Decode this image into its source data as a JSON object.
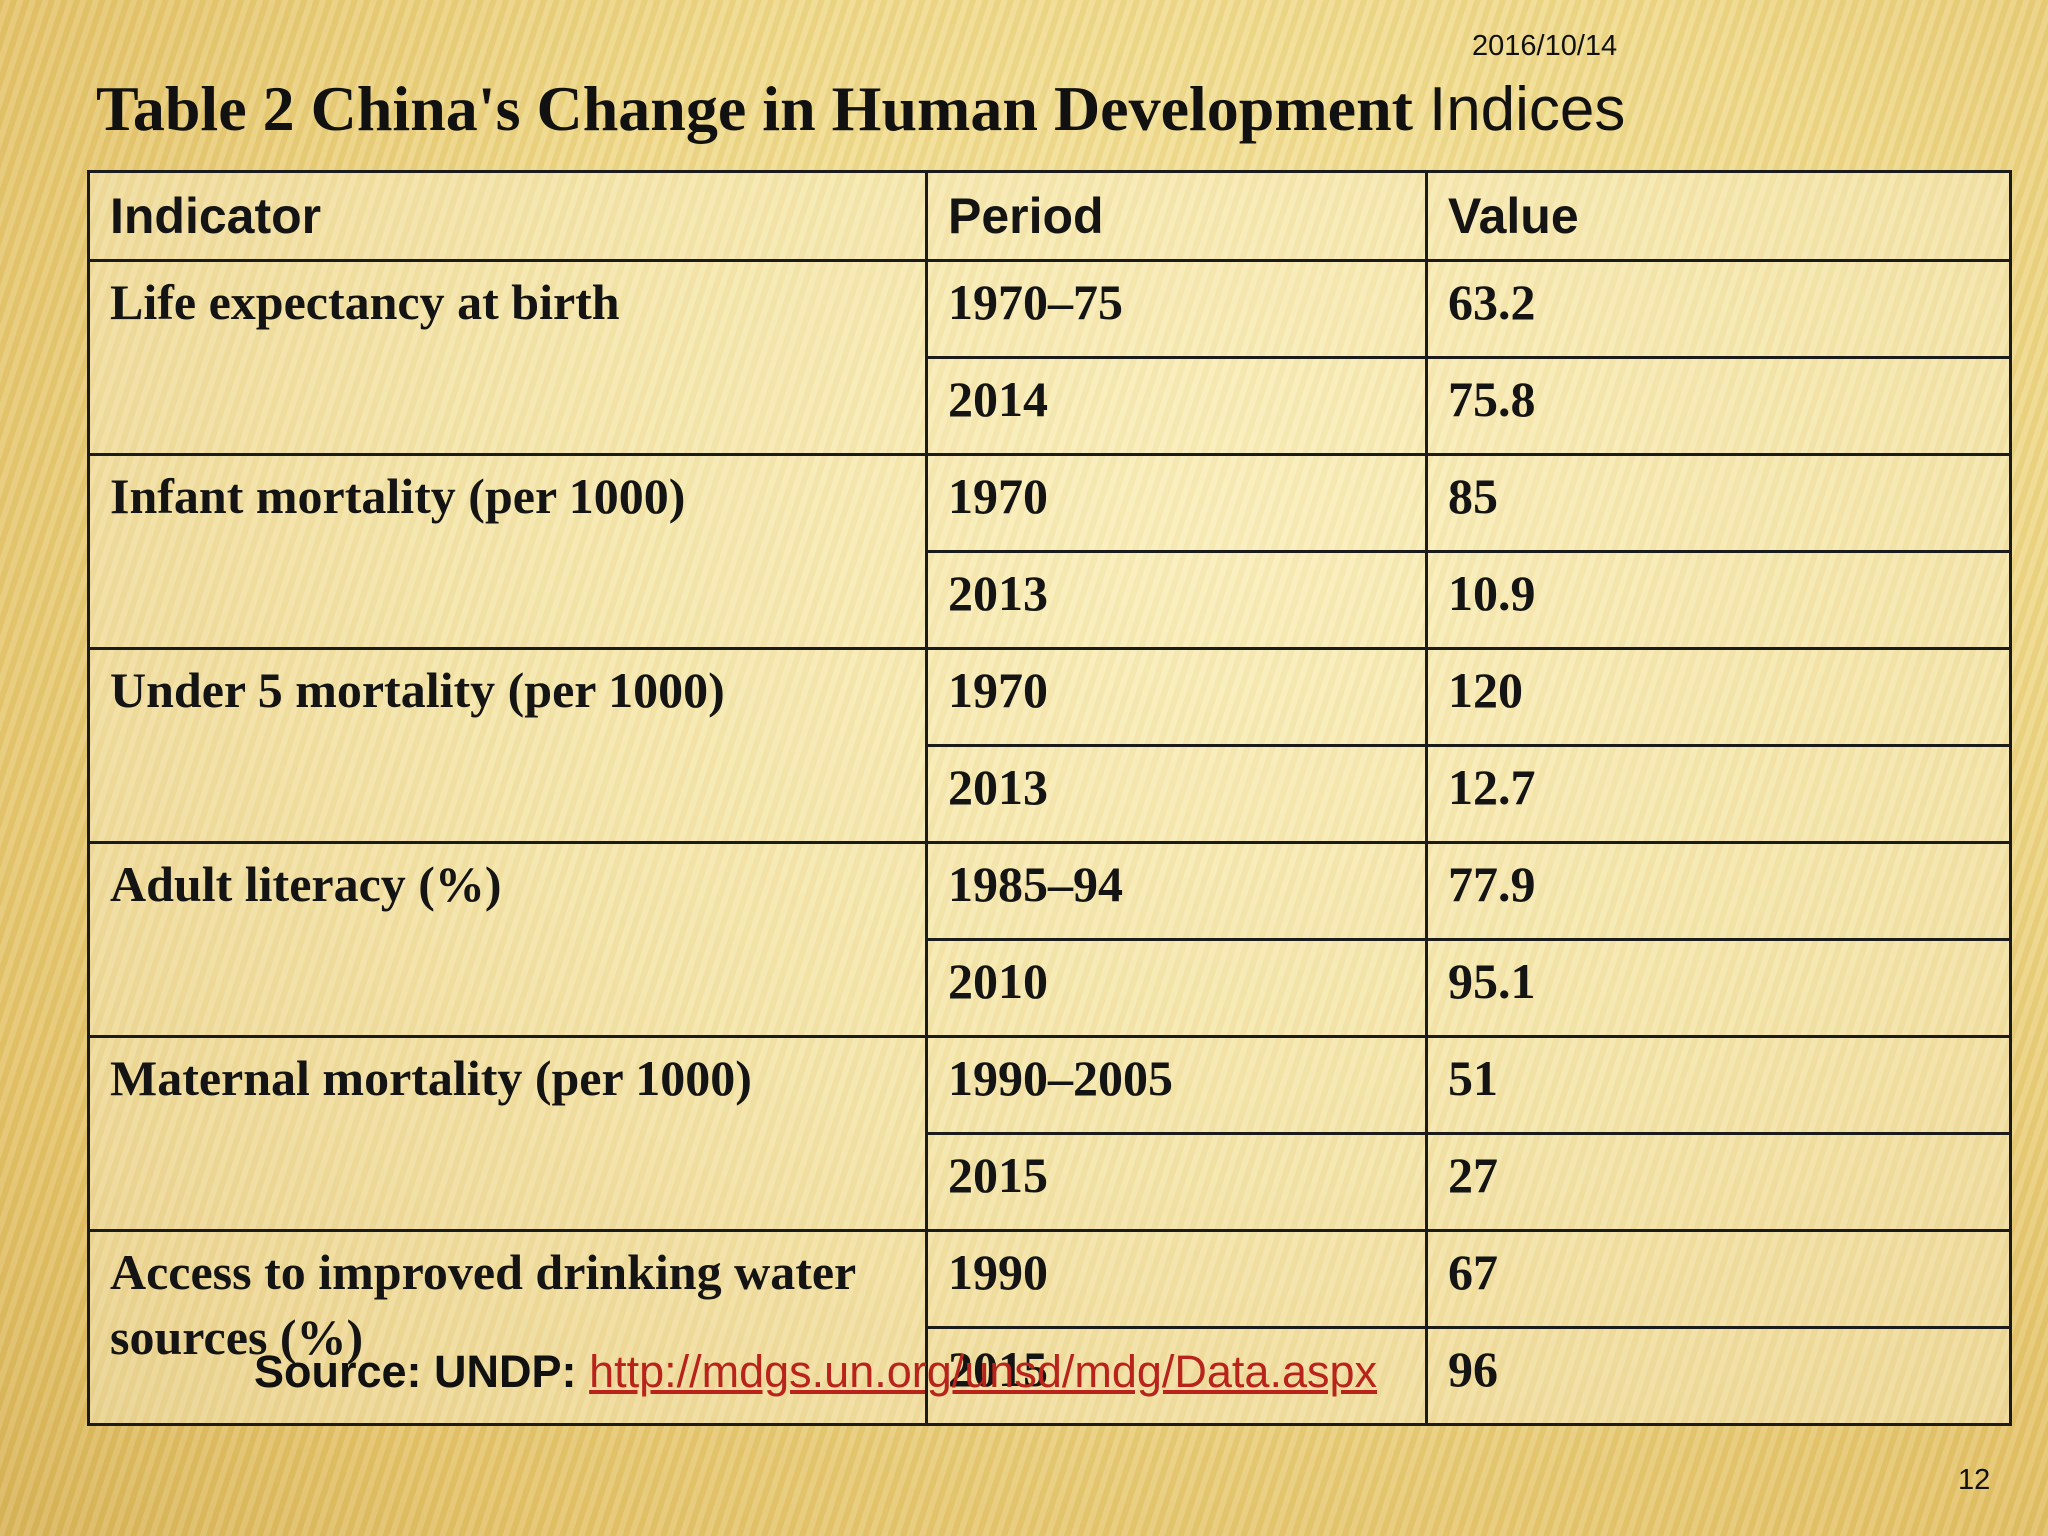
{
  "slide": {
    "date": "2016/10/14",
    "title_serif": "Table 2  China's Change in Human Development",
    "title_sans": "Indices",
    "page_number": "12"
  },
  "table": {
    "headers": [
      "Indicator",
      "Period",
      "Value"
    ],
    "groups": [
      {
        "indicator": "Life expectancy at birth",
        "rows": [
          {
            "period": "1970–75",
            "value": "63.2"
          },
          {
            "period": "2014",
            "value": "75.8"
          }
        ]
      },
      {
        "indicator": "Infant mortality (per 1000)",
        "rows": [
          {
            "period": "1970",
            "value": "85"
          },
          {
            "period": "2013",
            "value": "10.9"
          }
        ]
      },
      {
        "indicator": "Under 5 mortality (per 1000)",
        "rows": [
          {
            "period": "1970",
            "value": "120"
          },
          {
            "period": "2013",
            "value": "12.7"
          }
        ]
      },
      {
        "indicator": "Adult literacy (%)",
        "rows": [
          {
            "period": "1985–94",
            "value": "77.9"
          },
          {
            "period": "2010",
            "value": "95.1"
          }
        ]
      },
      {
        "indicator": "Maternal mortality (per 1000)",
        "rows": [
          {
            "period": "1990–2005",
            "value": "51"
          },
          {
            "period": "2015",
            "value": "27"
          }
        ]
      },
      {
        "indicator": "Access to improved drinking water sources (%)",
        "rows": [
          {
            "period": "1990",
            "value": "67"
          },
          {
            "period": "2015",
            "value": "96"
          }
        ]
      }
    ]
  },
  "source": {
    "label": "Source: UNDP:",
    "link_text": "http://mdgs.un.org/unsd/mdg/Data.aspx"
  }
}
